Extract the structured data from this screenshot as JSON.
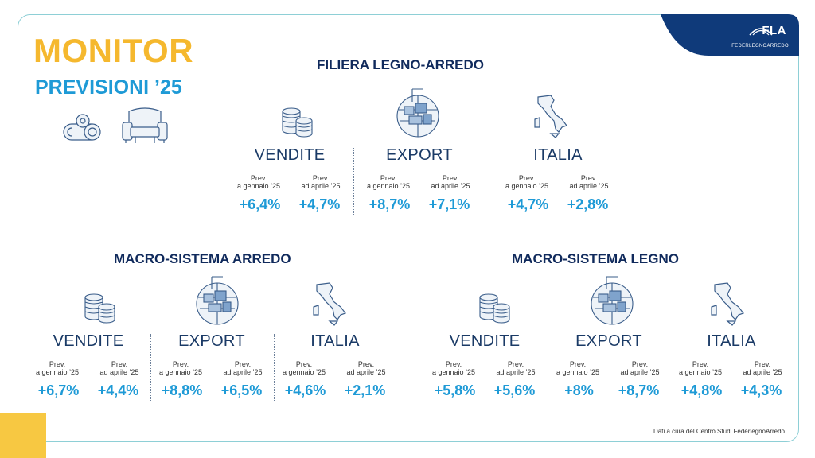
{
  "header": {
    "title": "MONITOR",
    "subtitle": "PREVISIONI ’25",
    "logo": "FLA",
    "logo_sub": "FEDERLEGNOARREDO"
  },
  "colors": {
    "yellow": "#f5b82e",
    "blue": "#1e9ad6",
    "navy": "#102a5c",
    "logo_bg": "#0f3a7a"
  },
  "sections": [
    {
      "title": "FILIERA LEGNO-ARREDO",
      "columns": [
        {
          "name": "VENDITE",
          "icon": "coins-stack-icon",
          "sub1": [
            "Prev.",
            "a gennaio ’25"
          ],
          "sub2": [
            "Prev.",
            "ad aprile ’25"
          ],
          "val1": "+6,4%",
          "val2": "+4,7%"
        },
        {
          "name": "EXPORT",
          "icon": "globe-containers-icon",
          "sub1": [
            "Prev.",
            "a gennaio ’25"
          ],
          "sub2": [
            "Prev.",
            "ad aprile ’25"
          ],
          "val1": "+8,7%",
          "val2": "+7,1%"
        },
        {
          "name": "ITALIA",
          "icon": "italy-map-icon",
          "sub1": [
            "Prev.",
            "a gennaio ’25"
          ],
          "sub2": [
            "Prev.",
            "ad aprile ’25"
          ],
          "val1": "+4,7%",
          "val2": "+2,8%"
        }
      ]
    },
    {
      "title": "MACRO-SISTEMA ARREDO",
      "columns": [
        {
          "name": "VENDITE",
          "icon": "coins-stack-icon",
          "sub1": [
            "Prev.",
            "a gennaio ’25"
          ],
          "sub2": [
            "Prev.",
            "ad aprile ’25"
          ],
          "val1": "+6,7%",
          "val2": "+4,4%"
        },
        {
          "name": "EXPORT",
          "icon": "globe-containers-icon",
          "sub1": [
            "Prev.",
            "a gennaio ’25"
          ],
          "sub2": [
            "Prev.",
            "ad aprile ’25"
          ],
          "val1": "+8,8%",
          "val2": "+6,5%"
        },
        {
          "name": "ITALIA",
          "icon": "italy-map-icon",
          "sub1": [
            "Prev.",
            "a gennaio ’25"
          ],
          "sub2": [
            "Prev.",
            "ad aprile ’25"
          ],
          "val1": "+4,6%",
          "val2": "+2,1%"
        }
      ]
    },
    {
      "title": "MACRO-SISTEMA LEGNO",
      "columns": [
        {
          "name": "VENDITE",
          "icon": "coins-stack-icon",
          "sub1": [
            "Prev.",
            "a gennaio ’25"
          ],
          "sub2": [
            "Prev.",
            "ad aprile ’25"
          ],
          "val1": "+5,8%",
          "val2": "+5,6%"
        },
        {
          "name": "EXPORT",
          "icon": "globe-containers-icon",
          "sub1": [
            "Prev.",
            "a gennaio ’25"
          ],
          "sub2": [
            "Prev.",
            "ad aprile ’25"
          ],
          "val1": "+8%",
          "val2": "+8,7%"
        },
        {
          "name": "ITALIA",
          "icon": "italy-map-icon",
          "sub1": [
            "Prev.",
            "a gennaio ’25"
          ],
          "sub2": [
            "Prev.",
            "ad aprile ’25"
          ],
          "val1": "+4,8%",
          "val2": "+4,3%"
        }
      ]
    }
  ],
  "footer": "Dati a cura del Centro Studi FederlegnoArredo"
}
